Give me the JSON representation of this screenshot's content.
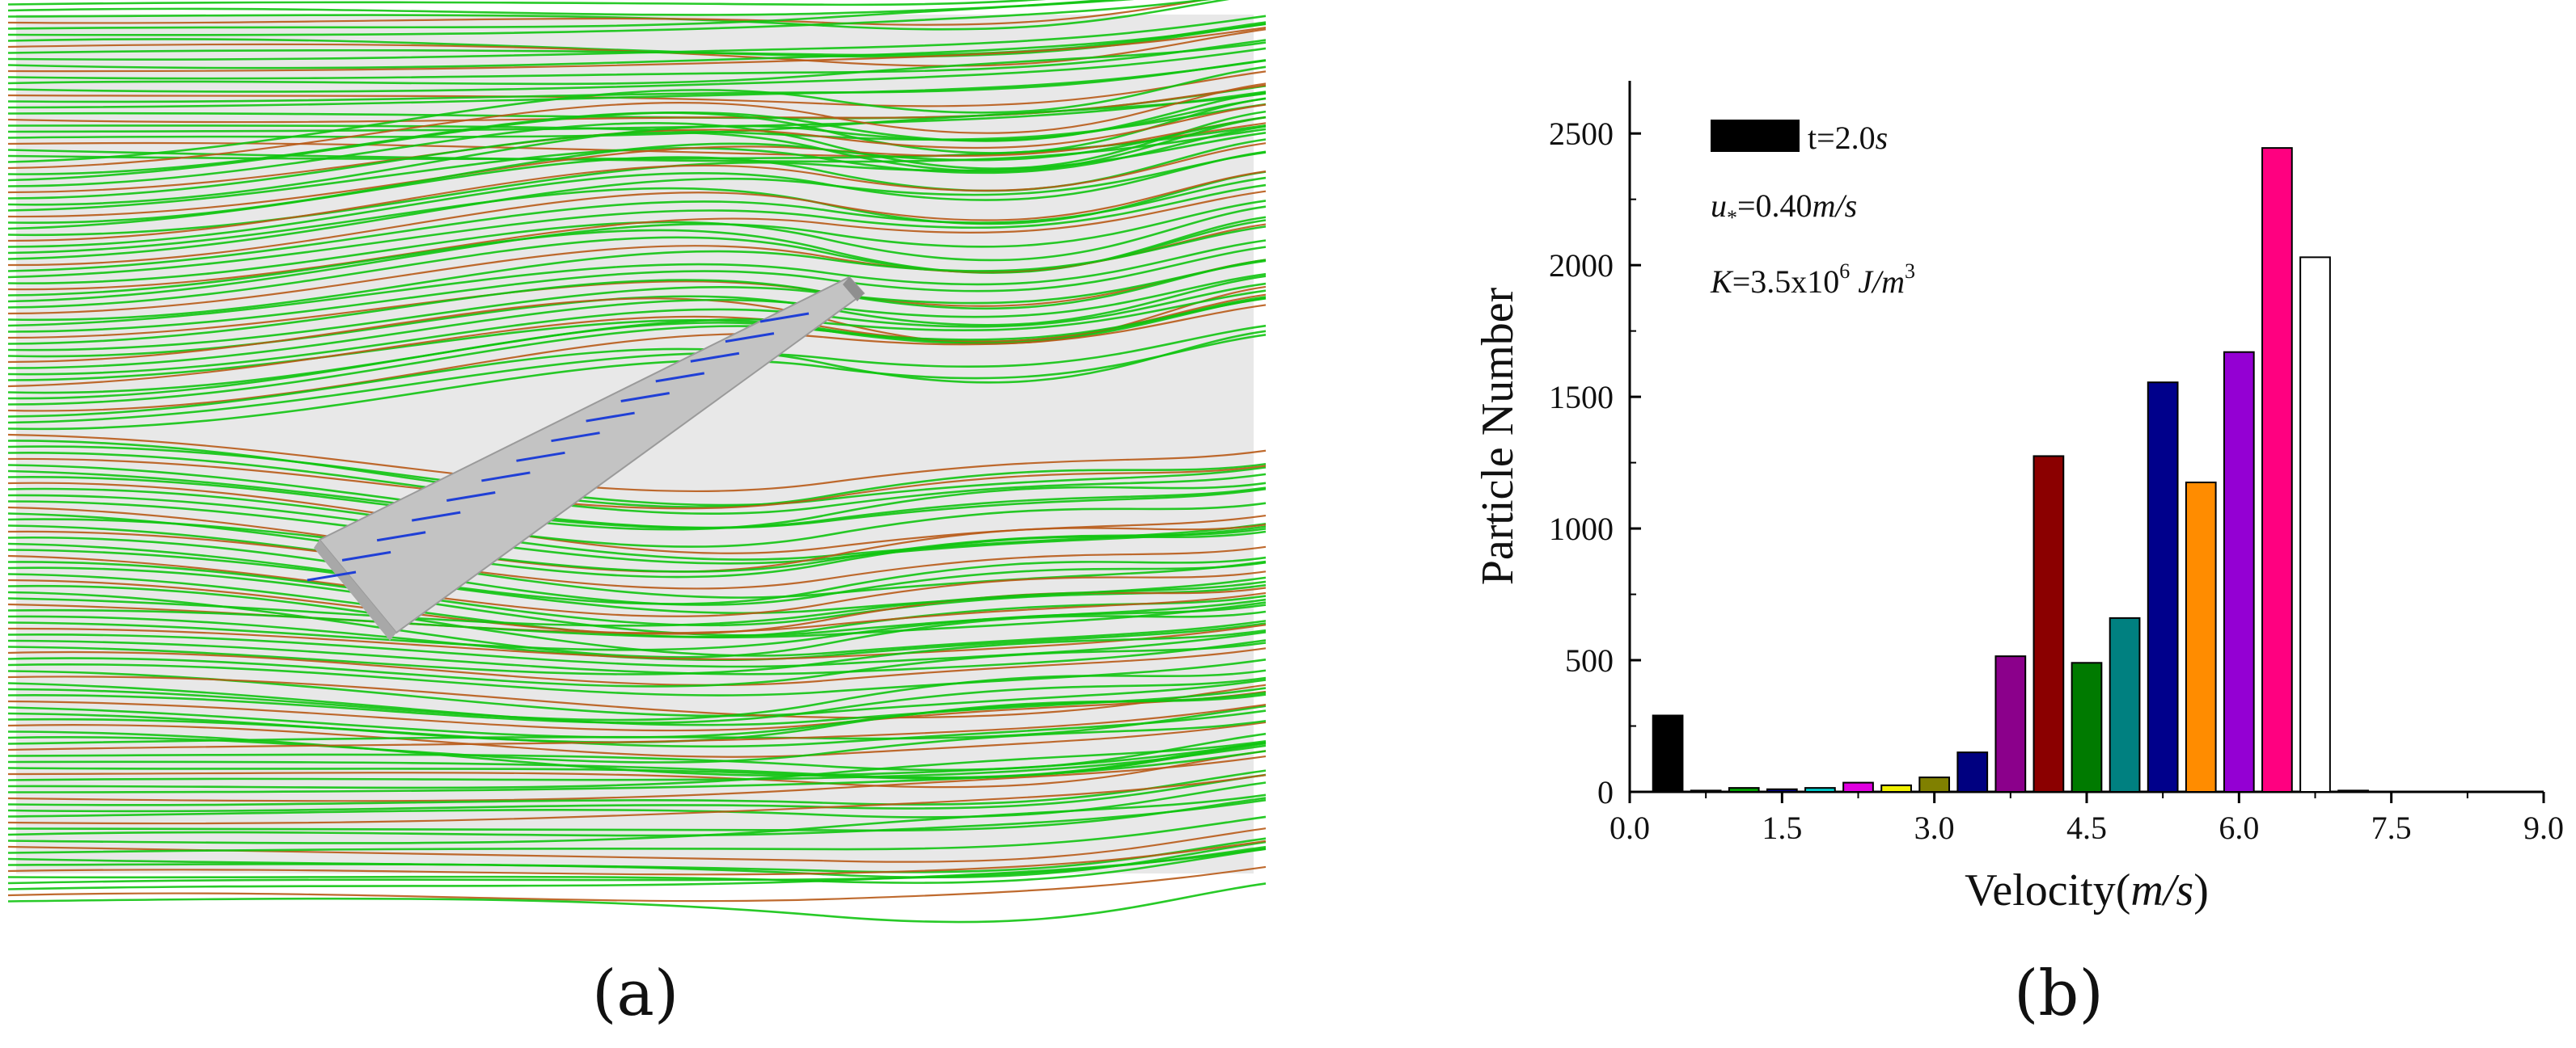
{
  "panel_a": {
    "caption": "(a)",
    "image_semantic": "streamline-simulation-around-inclined-plate",
    "colors": {
      "background": "#e9e9e9",
      "primary_streamline": "#11c411",
      "secondary_streamline": "#b85a17",
      "plate": "#c4c4c4",
      "near_plate_vectors": "#1f3fd6"
    }
  },
  "panel_b": {
    "caption": "(b)",
    "chart_data": {
      "type": "bar",
      "xlabel": "Velocity(m/s)",
      "xlabel_parts": {
        "pre": "Velocity(",
        "unit": "m/s",
        "post": ")"
      },
      "ylabel": "Particle Number",
      "xlim": [
        0.0,
        9.0
      ],
      "ylim": [
        0,
        2700
      ],
      "xticks": [
        "0.0",
        "1.5",
        "3.0",
        "4.5",
        "6.0",
        "7.5",
        "9.0"
      ],
      "yticks": [
        "0",
        "500",
        "1000",
        "1500",
        "2000",
        "2500"
      ],
      "bin_width": 0.375,
      "x": [
        0.375,
        0.75,
        1.125,
        1.5,
        1.875,
        2.25,
        2.625,
        3.0,
        3.375,
        3.75,
        4.125,
        4.5,
        4.875,
        5.25,
        5.625,
        6.0,
        6.375,
        6.75,
        7.125,
        7.5,
        7.875,
        8.25
      ],
      "values": [
        290,
        5,
        15,
        10,
        15,
        35,
        25,
        55,
        150,
        515,
        1275,
        490,
        660,
        1555,
        1175,
        1670,
        2445,
        2030,
        5,
        0,
        0,
        0
      ],
      "bar_colors": [
        "#000000",
        "#c0003a",
        "#00a000",
        "#000088",
        "#00c8c8",
        "#e000e0",
        "#f0f000",
        "#808000",
        "#000080",
        "#8b008b",
        "#8b0000",
        "#007a00",
        "#008080",
        "#00008b",
        "#ff8c00",
        "#9400d3",
        "#ff0080",
        "#ffffff",
        "#666666",
        "#ffffff",
        "#ffffff",
        "#ffffff"
      ],
      "bar_count": 19,
      "grid": false,
      "legend": {
        "placement": "top-left",
        "entry": "t=2.0s",
        "entry_parts": {
          "pre": "t=2.0",
          "unit": "s"
        },
        "line2": "u*=0.40m/s",
        "line2_parts": {
          "var": "u",
          "sub": "*",
          "mid": "=0.40",
          "unit": "m/s"
        },
        "line3": "K=3.5x10^6 J/m^3",
        "line3_parts": {
          "var": "K",
          "mid": "=3.5x10",
          "exp": "6",
          "unit": " J/m",
          "unit_exp": "3"
        },
        "swatch_color": "#000000"
      }
    }
  }
}
